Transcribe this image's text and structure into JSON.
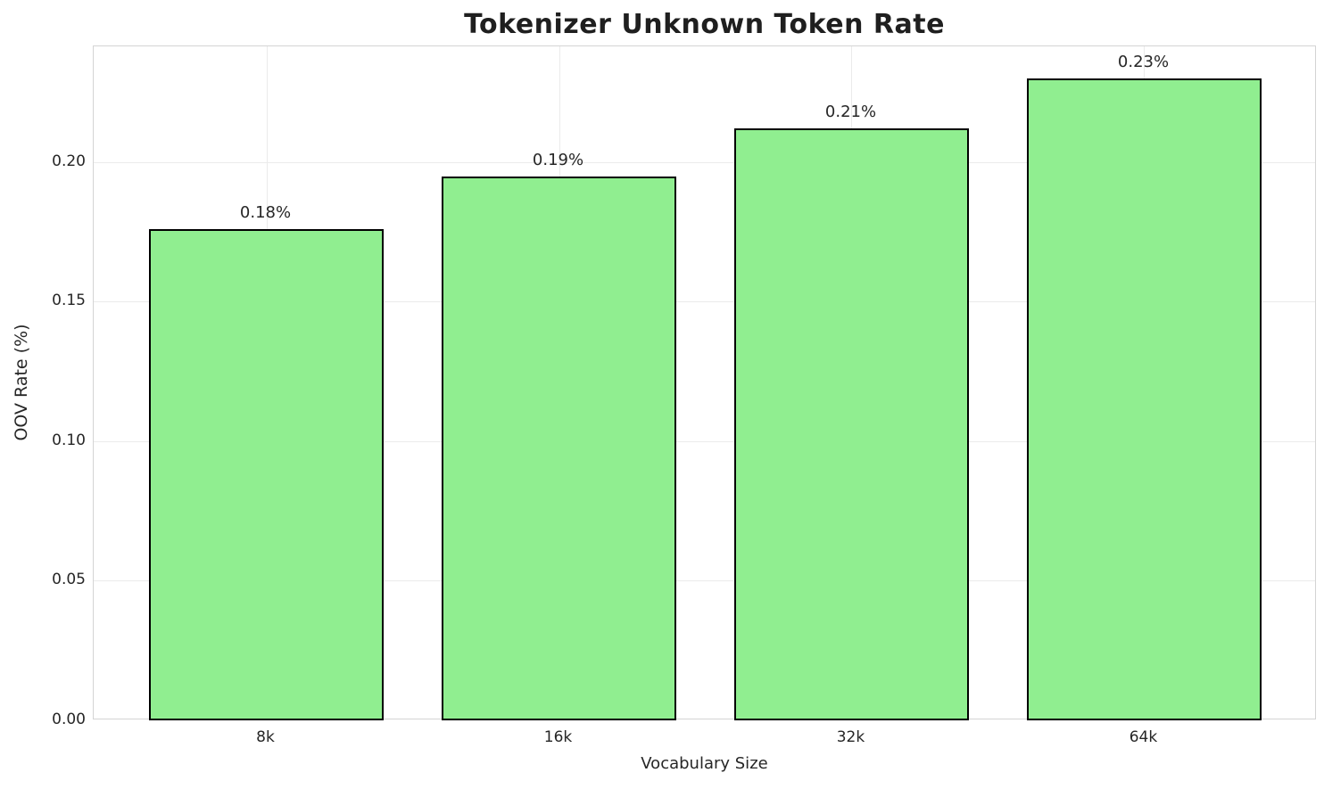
{
  "chart_data": {
    "type": "bar",
    "title": "Tokenizer Unknown Token Rate",
    "xlabel": "Vocabulary Size",
    "ylabel": "OOV Rate (%)",
    "categories": [
      "8k",
      "16k",
      "32k",
      "64k"
    ],
    "values": [
      0.176,
      0.195,
      0.212,
      0.23
    ],
    "bar_labels": [
      "0.18%",
      "0.19%",
      "0.21%",
      "0.23%"
    ],
    "ytick_values": [
      0.0,
      0.05,
      0.1,
      0.15,
      0.2
    ],
    "ytick_labels": [
      "0.00",
      "0.05",
      "0.10",
      "0.15",
      "0.20"
    ],
    "ylim": [
      0,
      0.2415
    ],
    "grid": true,
    "legend": "none",
    "bar_color": "#90EE90",
    "bar_edge_color": "#000000",
    "grid_color": "#ebebeb",
    "text_color": "#262626"
  }
}
